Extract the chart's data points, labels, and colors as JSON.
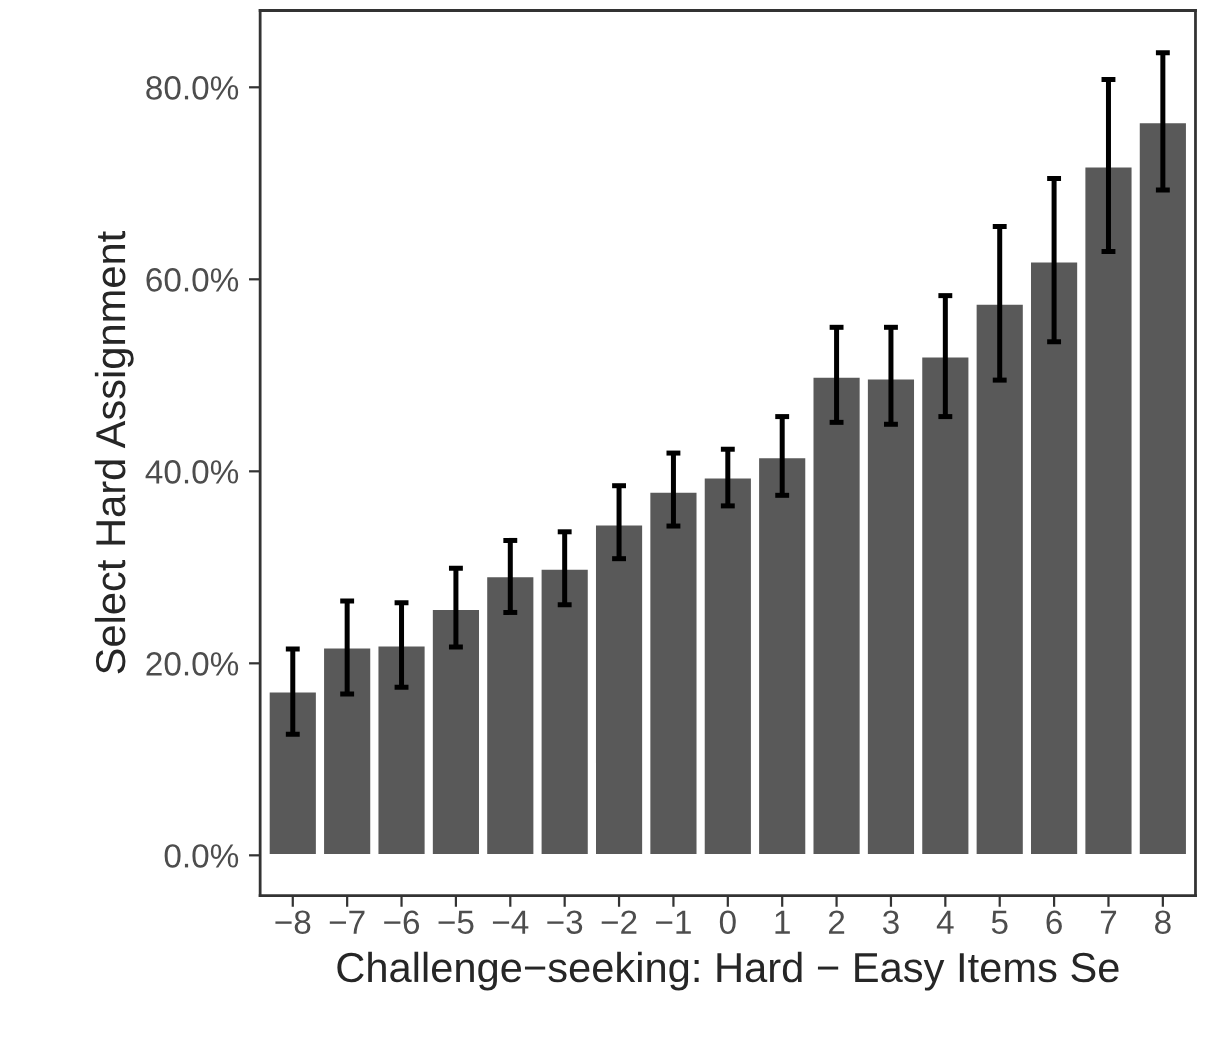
{
  "chart_data": {
    "type": "bar",
    "xlabel": "Challenge−seeking: Hard − Easy Items Se",
    "ylabel": "Select Hard Assignment",
    "categories": [
      "−8",
      "−7",
      "−6",
      "−5",
      "−4",
      "−3",
      "−2",
      "−1",
      "0",
      "1",
      "2",
      "3",
      "4",
      "5",
      "6",
      "7",
      "8"
    ],
    "series": [
      {
        "color": "#595959",
        "values": [
          17.1,
          21.7,
          21.9,
          25.7,
          29.1,
          29.9,
          34.5,
          37.9,
          39.4,
          41.5,
          49.9,
          49.7,
          52.0,
          57.5,
          61.9,
          71.8,
          76.4
        ],
        "errors": [
          [
            12.6,
            21.5
          ],
          [
            16.8,
            26.5
          ],
          [
            17.5,
            26.3
          ],
          [
            21.7,
            29.9
          ],
          [
            25.3,
            32.8
          ],
          [
            26.1,
            33.7
          ],
          [
            30.9,
            38.5
          ],
          [
            34.3,
            41.9
          ],
          [
            36.4,
            42.3
          ],
          [
            37.5,
            45.7
          ],
          [
            45.1,
            55.0
          ],
          [
            44.9,
            55.0
          ],
          [
            45.7,
            58.3
          ],
          [
            49.5,
            65.5
          ],
          [
            53.5,
            70.5
          ],
          [
            62.9,
            80.8
          ],
          [
            69.3,
            83.6
          ]
        ]
      }
    ],
    "ylim": [
      -4.2,
      88
    ],
    "yticks": [
      {
        "value": 0,
        "label": "0.0%"
      },
      {
        "value": 20,
        "label": "20.0%"
      },
      {
        "value": 40,
        "label": "40.0%"
      },
      {
        "value": 60,
        "label": "60.0%"
      },
      {
        "value": 80,
        "label": "80.0%"
      }
    ],
    "grid": false
  }
}
